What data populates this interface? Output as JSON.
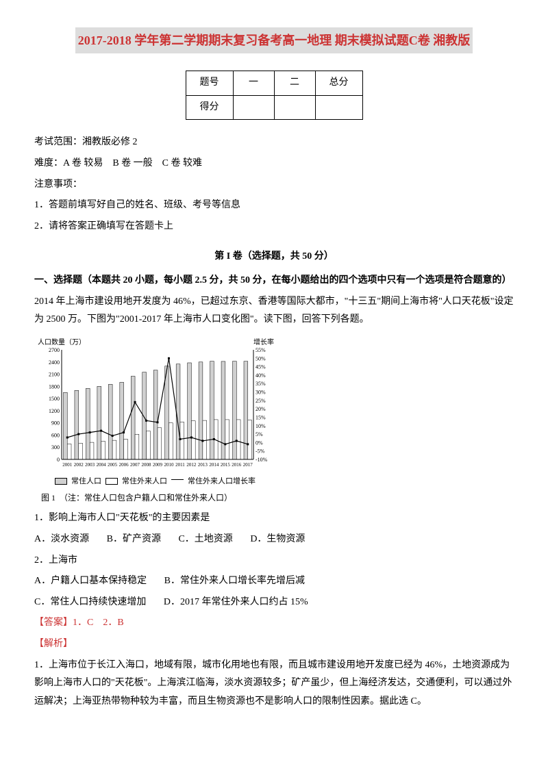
{
  "title": "2017-2018 学年第二学期期末复习备考高一地理 期末模拟试题C卷 湘教版",
  "score_table": {
    "headers": [
      "题号",
      "一",
      "二",
      "总分"
    ],
    "row2": [
      "得分",
      "",
      "",
      ""
    ]
  },
  "info": {
    "scope": "考试范围：湘教版必修 2",
    "difficulty": "难度：A 卷 较易　B 卷 一般　C 卷 较难",
    "notice_header": "注意事项：",
    "notice1": "1．答题前填写好自己的姓名、班级、考号等信息",
    "notice2": "2．请将答案正确填写在答题卡上"
  },
  "section1": {
    "header": "第 I 卷（选择题，共 50 分）",
    "instruction": "一、选择题（本题共 20 小题，每小题 2.5 分，共 50 分，在每小题给出的四个选项中只有一个选项是符合题意的）"
  },
  "passage": "2014 年上海市建设用地开发度为 46%，已超过东京、香港等国际大都市，\"十三五\"期间上海市将\"人口天花板\"设定为 2500 万。下图为\"2001-2017 年上海市人口变化图\"。读下图，回答下列各题。",
  "chart": {
    "type": "bar+line",
    "y1_label": "人口数量（万）",
    "y2_label": "增长率",
    "y1_max": 2700,
    "y1_min": 0,
    "y1_step": 300,
    "y2_max": 55,
    "y2_min": -10,
    "y2_step": 5,
    "y1_ticks": [
      0,
      300,
      600,
      900,
      1200,
      1500,
      1800,
      2100,
      2400,
      2700
    ],
    "y2_ticks_top_down": [
      "55%",
      "50%",
      "45%",
      "40%",
      "35%",
      "30%",
      "25%",
      "20%",
      "15%",
      "10%",
      "5%",
      "0%",
      "-5%",
      "-10%"
    ],
    "years": [
      2001,
      2002,
      2003,
      2004,
      2005,
      2006,
      2007,
      2008,
      2009,
      2010,
      2011,
      2012,
      2013,
      2014,
      2015,
      2016,
      2017
    ],
    "resident": [
      1650,
      1700,
      1750,
      1800,
      1850,
      1900,
      2050,
      2150,
      2200,
      2300,
      2350,
      2380,
      2400,
      2420,
      2415,
      2420,
      2418
    ],
    "migrant": [
      380,
      400,
      420,
      450,
      470,
      500,
      620,
      700,
      780,
      900,
      920,
      950,
      960,
      980,
      980,
      980,
      970
    ],
    "growth": [
      3,
      5,
      6,
      7,
      4,
      6,
      24,
      13,
      12,
      50,
      2,
      3,
      1,
      2,
      -1,
      1,
      -1
    ],
    "bar_color_resident": "#d0d0d0",
    "bar_color_migrant": "#ffffff",
    "bar_border": "#000000",
    "line_color": "#000000",
    "background": "#ffffff",
    "legend": {
      "a": "常住人口",
      "b": "常住外来人口",
      "c": "常住外来人口增长率"
    },
    "caption": "图 1　（注：常住人口包含户籍人口和常住外来人口）"
  },
  "q1": {
    "stem": "1．影响上海市人口\"天花板\"的主要因素是",
    "A": "A．淡水资源",
    "B": "B．矿产资源",
    "C": "C．土地资源",
    "D": "D．生物资源"
  },
  "q2": {
    "stem": "2．上海市",
    "A": "A．户籍人口基本保持稳定",
    "B": "B．常住外来人口增长率先增后减",
    "C": "C．常住人口持续快速增加",
    "D": "D．2017 年常住外来人口约占 15%"
  },
  "answer": {
    "label": "【答案】1．C　2．B",
    "exp_label": "【解析】",
    "exp1": "1．上海市位于长江入海口，地域有限，城市化用地也有限，而且城市建设用地开发度已经为 46%，土地资源成为影响上海市人口的\"天花板\"。上海滨江临海，淡水资源较多；矿产虽少，但上海经济发达，交通便利，可以通过外运解决；上海亚热带物种较为丰富，而且生物资源也不是影响人口的限制性因素。据此选 C。"
  }
}
